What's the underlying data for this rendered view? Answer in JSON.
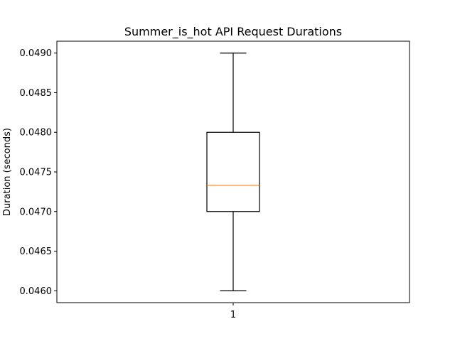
{
  "chart_data": {
    "type": "box",
    "title": "Summer_is_hot API Request Durations",
    "xlabel": "",
    "ylabel": "Duration (seconds)",
    "categories": [
      "1"
    ],
    "ylim": [
      0.04585,
      0.04915
    ],
    "yticks": [
      0.046,
      0.0465,
      0.047,
      0.0475,
      0.048,
      0.0485,
      0.049
    ],
    "ytick_labels": [
      "0.0460",
      "0.0465",
      "0.0470",
      "0.0475",
      "0.0480",
      "0.0485",
      "0.0490"
    ],
    "boxes": [
      {
        "category": "1",
        "whisker_low": 0.046,
        "q1": 0.047,
        "median": 0.04733,
        "q3": 0.048,
        "whisker_high": 0.049
      }
    ],
    "grid": false,
    "colors": {
      "box": "#000000",
      "median": "#ff7f0e",
      "axes": "#000000"
    }
  }
}
